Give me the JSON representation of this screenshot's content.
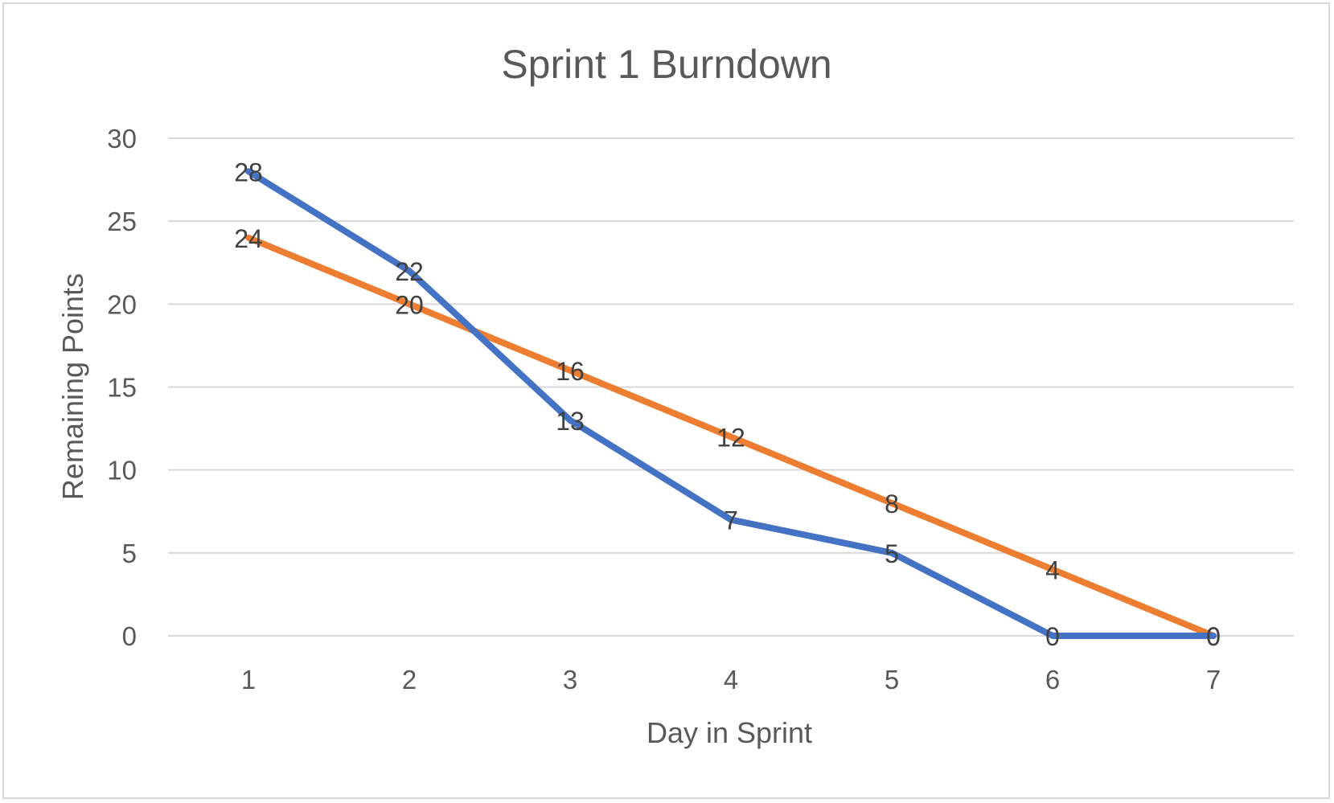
{
  "chart_data": {
    "type": "line",
    "title": "Sprint 1 Burndown",
    "xlabel": "Day in Sprint",
    "ylabel": "Remaining Points",
    "categories": [
      "1",
      "2",
      "3",
      "4",
      "5",
      "6",
      "7"
    ],
    "ylim": [
      0,
      30
    ],
    "yticks": [
      0,
      5,
      10,
      15,
      20,
      25,
      30
    ],
    "grid": true,
    "legend": "none",
    "series": [
      {
        "color": "#4472c4",
        "values": [
          28,
          22,
          13,
          7,
          5,
          0,
          0
        ]
      },
      {
        "color": "#ed7d31",
        "values": [
          24,
          20,
          16,
          12,
          8,
          4,
          0
        ]
      }
    ]
  }
}
